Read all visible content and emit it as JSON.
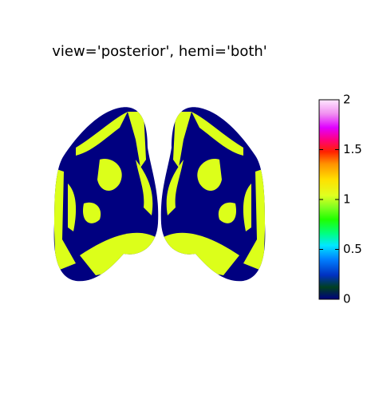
{
  "chart_data": {
    "type": "surface",
    "title": "view='posterior', hemi='both'",
    "colorbar": {
      "lim": [
        0,
        2
      ],
      "ticks": [
        0,
        0.5,
        1,
        1.5,
        2
      ]
    }
  }
}
